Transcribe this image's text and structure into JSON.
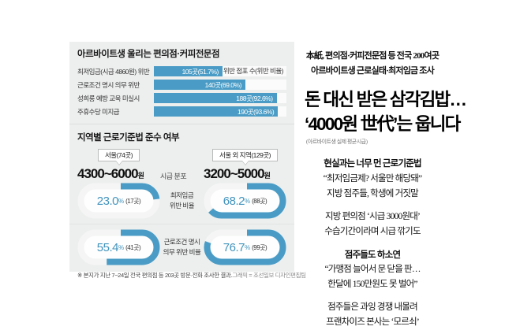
{
  "accent_color": "#4a9cc6",
  "percent_sign": "%",
  "infographic": {
    "title": "아르바이트생 울리는 편의점·커피전문점",
    "bar_note": "위반 점포 수(위반 비율)",
    "bars": [
      {
        "label": "최저임금(시급 4860원) 위반",
        "value": "105곳(51.7%)",
        "pct": 51.7
      },
      {
        "label": "근로조건 명시 의무 위반",
        "value": "140곳(69.0%)",
        "pct": 69.0
      },
      {
        "label": "성희롱 예방 교육 미실시",
        "value": "188곳(92.6%)",
        "pct": 92.6
      },
      {
        "label": "주휴수당 미지급",
        "value": "190곳(93.6%)",
        "pct": 93.6
      }
    ],
    "section2": {
      "title": "지역별 근로기준법 준수 여부",
      "left_region": "서울(74곳)",
      "right_region": "서울 외 지역(129곳)",
      "left_range": "4300~6000",
      "right_range": "3200~5000",
      "range_suffix": "원",
      "range_label": "시급 분포",
      "rows": [
        {
          "label_line1": "최저임금",
          "label_line2": "위반 비율",
          "left": {
            "num": "23.0",
            "count": "(17곳)",
            "pct": 23.0
          },
          "right": {
            "num": "68.2",
            "count": "(88곳)",
            "pct": 68.2
          }
        },
        {
          "label_line1": "근로조건 명시",
          "label_line2": "의무 위반 비율",
          "left": {
            "num": "55.4",
            "count": "(41곳)",
            "pct": 55.4
          },
          "right": {
            "num": "76.7",
            "count": "(99곳)",
            "pct": 76.7
          }
        }
      ]
    },
    "footnote": "※ 본지가 지난 7~24일 전국 편의점 등 203곳 방문·전화 조사한 결과.",
    "credit": "그래픽 = 조선일보 디자인편집팀"
  },
  "article": {
    "kicker_line1": "本紙, 편의점·커피전문점 등 전국 200여곳",
    "kicker_line2": "아르바이트생 근로실태·최저임금 조사",
    "headline_line1": "돈 대신 받은 삼각김밥…",
    "headline_line2": "‘4000원 世代’는 웁니다",
    "headline_note": "(아르바이트생 실제 평균시급)",
    "body": [
      {
        "text": "현실과는 너무 먼 근로기준법"
      },
      {
        "text": "“최저임금제? 서울만 해당돼”"
      },
      {
        "text": "지방 점주들, 학생에 거짓말"
      },
      {
        "text": "지방 편의점 ‘시급 3000원대’"
      },
      {
        "text": "수습기간이라며 시급 깎기도"
      },
      {
        "text": "점주들도 하소연"
      },
      {
        "text": "“가맹점 늘어서 문 닫을 판…"
      },
      {
        "text": "한달에 150만원도 못 벌어”"
      },
      {
        "text": "점주들은 과잉 경쟁 내몰려"
      },
      {
        "text": "프랜차이즈 본사는 ‘모르쇠’"
      }
    ]
  },
  "chart_data": [
    {
      "type": "bar",
      "title": "아르바이트생 울리는 편의점·커피전문점",
      "categories": [
        "최저임금(시급 4860원) 위반",
        "근로조건 명시 의무 위반",
        "성희롱 예방 교육 미실시",
        "주휴수당 미지급"
      ],
      "values": [
        105,
        140,
        188,
        190
      ],
      "percent": [
        51.7,
        69.0,
        92.6,
        93.6
      ],
      "unit": "곳",
      "value_label": "위반 점포 수(위반 비율)",
      "orientation": "horizontal",
      "xlim": [
        0,
        100
      ],
      "bar_color": "#4a9cc6"
    },
    {
      "type": "pie",
      "style": "rounded-rect gauge rings",
      "title": "지역별 근로기준법 준수 여부",
      "groups": [
        {
          "region": "서울",
          "stores_surveyed": 74,
          "hourly_wage_range": "4300~6000원",
          "metrics": [
            {
              "name": "최저임금 위반 비율",
              "percent": 23.0,
              "count": "17곳"
            },
            {
              "name": "근로조건 명시 의무 위반 비율",
              "percent": 55.4,
              "count": "41곳"
            }
          ]
        },
        {
          "region": "서울 외 지역",
          "stores_surveyed": 129,
          "hourly_wage_range": "3200~5000원",
          "metrics": [
            {
              "name": "최저임금 위반 비율",
              "percent": 68.2,
              "count": "88곳"
            },
            {
              "name": "근로조건 명시 의무 위반 비율",
              "percent": 76.7,
              "count": "99곳"
            }
          ]
        }
      ],
      "center_label": "시급 분포",
      "footnote": "※ 본지가 지난 7~24일 전국 편의점 등 203곳 방문·전화 조사한 결과.",
      "credit": "그래픽 = 조선일보 디자인편집팀"
    }
  ]
}
